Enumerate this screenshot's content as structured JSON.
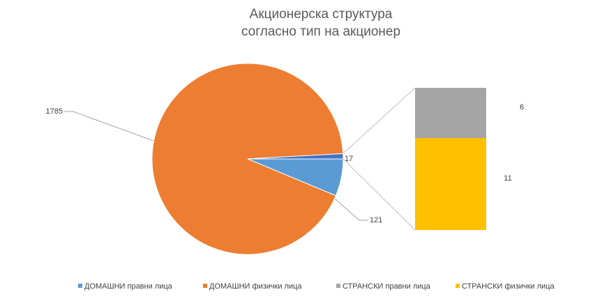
{
  "chart_data": {
    "type": "bar_of_pie",
    "title": [
      "Акционерска структура",
      "согласно тип на акционер"
    ],
    "pie": {
      "categories": [
        "ДОМАШНИ правни лица",
        "ДОМАШНИ физички лица"
      ],
      "values": [
        121,
        1785
      ],
      "colors": [
        "#5b9bd5",
        "#ed7d31"
      ]
    },
    "other": {
      "value": 17,
      "color": "#4472c4"
    },
    "bar": {
      "categories": [
        "СТРАНСКИ правни лица",
        "СТРАНСКИ физички лица"
      ],
      "values": [
        6,
        11
      ],
      "colors": [
        "#a5a5a5",
        "#ffc000"
      ]
    }
  }
}
